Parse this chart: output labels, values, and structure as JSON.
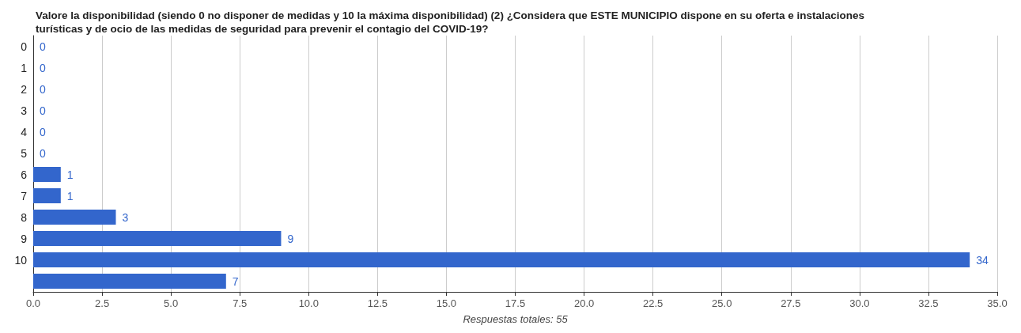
{
  "chart_data": {
    "type": "bar",
    "orientation": "horizontal",
    "title": "Valore la disponibilidad (siendo 0 no disponer de medidas y 10 la máxima disponibilidad) (2) ¿Considera que ESTE MUNICIPIO dispone en su oferta e instalaciones turísticas y de ocio de las medidas de seguridad para prevenir el contagio del COVID-19?",
    "xlabel": "Respuestas totales: 55",
    "categories": [
      "0",
      "1",
      "2",
      "3",
      "4",
      "5",
      "6",
      "7",
      "8",
      "9",
      "10",
      null
    ],
    "values": [
      0,
      0,
      0,
      0,
      0,
      0,
      1,
      1,
      3,
      9,
      34,
      7
    ],
    "color": "#3366cc",
    "data_labels": true,
    "xlim": [
      0,
      35
    ],
    "xticks": [
      {
        "value": 0,
        "label": "0.0"
      },
      {
        "value": 2.5,
        "label": "2.5"
      },
      {
        "value": 5,
        "label": "5.0"
      },
      {
        "value": 7.5,
        "label": "7.5"
      },
      {
        "value": 10,
        "label": "10.0"
      },
      {
        "value": 12.5,
        "label": "12.5"
      },
      {
        "value": 15,
        "label": "15.0"
      },
      {
        "value": 17.5,
        "label": "17.5"
      },
      {
        "value": 20,
        "label": "20.0"
      },
      {
        "value": 22.5,
        "label": "22.5"
      },
      {
        "value": 25,
        "label": "25.0"
      },
      {
        "value": 27.5,
        "label": "27.5"
      },
      {
        "value": 30,
        "label": "30.0"
      },
      {
        "value": 32.5,
        "label": "32.5"
      },
      {
        "value": 35,
        "label": "35.0"
      }
    ],
    "grid": "x"
  }
}
